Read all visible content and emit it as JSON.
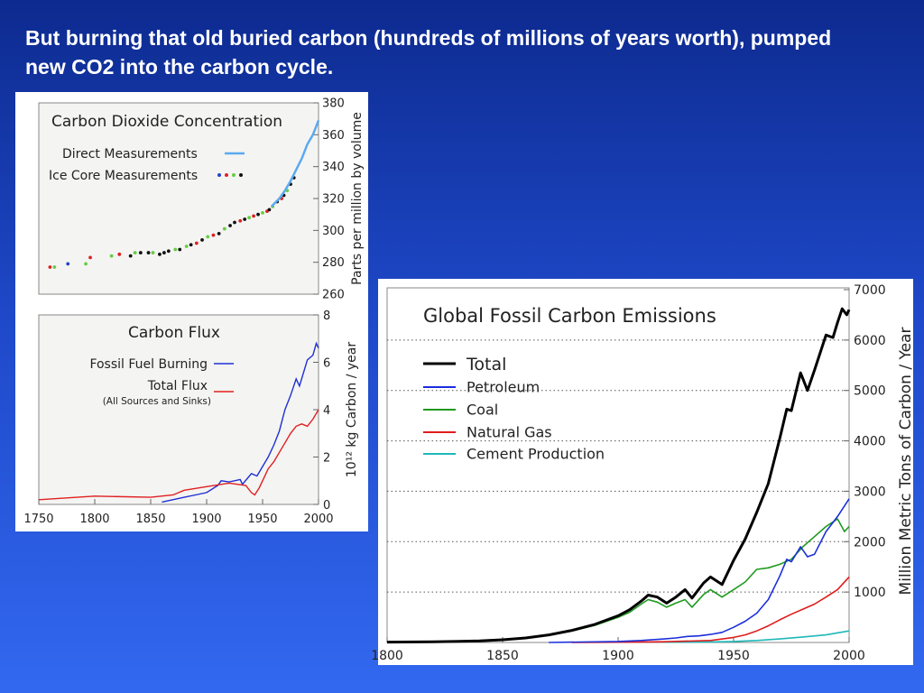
{
  "slide": {
    "title": "But burning that old buried carbon (hundreds of millions of years worth), pumped new CO2 into the carbon cycle."
  },
  "chart_data": [
    {
      "type": "scatter",
      "title": "Carbon Dioxide Concentration",
      "ylabel": "Parts per million by volume",
      "xlim": [
        1750,
        2000
      ],
      "ylim": [
        260,
        380
      ],
      "yticks": [
        "260",
        "280",
        "300",
        "320",
        "340",
        "360",
        "380"
      ],
      "legend": [
        {
          "label": "Direct Measurements",
          "color": "#5aaaf0"
        },
        {
          "label": "Ice Core Measurements",
          "colors": [
            "#2244cc",
            "#dd2222",
            "#66cc44",
            "#111111"
          ]
        }
      ],
      "series": [
        {
          "name": "Direct Measurements",
          "kind": "line",
          "color": "#5aaaf0",
          "x": [
            1958,
            1965,
            1970,
            1975,
            1980,
            1985,
            1990,
            1995,
            2000
          ],
          "y": [
            315,
            320,
            325,
            331,
            338,
            345,
            354,
            360,
            369
          ]
        },
        {
          "name": "Ice Core Measurements",
          "kind": "points",
          "x": [
            1760,
            1764,
            1776,
            1792,
            1796,
            1815,
            1822,
            1832,
            1836,
            1841,
            1848,
            1852,
            1858,
            1862,
            1866,
            1872,
            1876,
            1882,
            1886,
            1891,
            1896,
            1901,
            1906,
            1911,
            1916,
            1921,
            1925,
            1930,
            1934,
            1938,
            1942,
            1946,
            1950,
            1954,
            1956,
            1959,
            1963,
            1967,
            1969,
            1972,
            1975,
            1978
          ],
          "y": [
            277,
            277,
            279,
            279,
            283,
            284,
            285,
            284,
            286,
            286,
            286,
            286,
            285,
            286,
            287,
            288,
            288,
            290,
            291,
            292,
            294,
            296,
            297,
            298,
            301,
            303,
            305,
            306,
            307,
            308,
            309,
            310,
            311,
            312,
            313,
            315,
            318,
            320,
            322,
            325,
            329,
            333
          ],
          "colors": [
            "#dd2222",
            "#66cc44",
            "#2244cc",
            "#66cc44",
            "#dd2222",
            "#66cc44",
            "#dd2222",
            "#111111",
            "#66cc44",
            "#111111",
            "#111111",
            "#66cc44",
            "#111111",
            "#111111",
            "#111111",
            "#66cc44",
            "#111111",
            "#66cc44",
            "#111111",
            "#dd2222",
            "#111111",
            "#66cc44",
            "#dd2222",
            "#111111",
            "#66cc44",
            "#111111",
            "#111111",
            "#dd2222",
            "#111111",
            "#66cc44",
            "#dd2222",
            "#111111",
            "#66cc44",
            "#dd2222",
            "#111111",
            "#66cc44",
            "#111111",
            "#dd2222",
            "#111111",
            "#66cc44",
            "#111111",
            "#111111"
          ]
        }
      ]
    },
    {
      "type": "line",
      "title": "Carbon Flux",
      "ylabel": "10¹² kg Carbon / year",
      "xlim": [
        1750,
        2000
      ],
      "ylim": [
        0,
        8
      ],
      "xticks": [
        "1750",
        "1800",
        "1850",
        "1900",
        "1950",
        "2000"
      ],
      "yticks": [
        "0",
        "2",
        "4",
        "6",
        "8"
      ],
      "legend_note": "(All Sources and Sinks)",
      "series": [
        {
          "name": "Fossil Fuel Burning",
          "color": "#1f2fd4",
          "x": [
            1860,
            1880,
            1890,
            1900,
            1910,
            1913,
            1920,
            1930,
            1932,
            1940,
            1945,
            1950,
            1955,
            1960,
            1965,
            1970,
            1975,
            1980,
            1983,
            1990,
            1995,
            1998,
            2000
          ],
          "y": [
            0.1,
            0.3,
            0.4,
            0.5,
            0.8,
            1.0,
            0.95,
            1.05,
            0.85,
            1.3,
            1.2,
            1.6,
            2.0,
            2.5,
            3.1,
            4.0,
            4.6,
            5.3,
            5.0,
            6.1,
            6.3,
            6.8,
            6.6
          ]
        },
        {
          "name": "Total Flux",
          "color": "#e02020",
          "x": [
            1750,
            1800,
            1850,
            1870,
            1880,
            1900,
            1920,
            1935,
            1940,
            1943,
            1947,
            1950,
            1955,
            1960,
            1965,
            1970,
            1975,
            1980,
            1985,
            1990,
            1995,
            2000
          ],
          "y": [
            0.2,
            0.35,
            0.3,
            0.4,
            0.6,
            0.75,
            0.9,
            0.8,
            0.5,
            0.4,
            0.7,
            1.0,
            1.5,
            1.8,
            2.2,
            2.6,
            3.0,
            3.3,
            3.4,
            3.3,
            3.6,
            4.0
          ]
        }
      ]
    },
    {
      "type": "line",
      "title": "Global Fossil Carbon Emissions",
      "ylabel": "Million Metric Tons of Carbon / Year",
      "xlim": [
        1800,
        2000
      ],
      "ylim": [
        0,
        7000
      ],
      "xticks": [
        "1800",
        "1850",
        "1900",
        "1950",
        "2000"
      ],
      "yticks": [
        "1000",
        "2000",
        "3000",
        "4000",
        "5000",
        "6000",
        "7000"
      ],
      "grid": "dotted horizontal at each y tick",
      "series": [
        {
          "name": "Total",
          "color": "#000000",
          "x": [
            1800,
            1820,
            1840,
            1850,
            1860,
            1870,
            1880,
            1890,
            1900,
            1905,
            1910,
            1913,
            1917,
            1921,
            1925,
            1929,
            1932,
            1937,
            1940,
            1945,
            1950,
            1955,
            1960,
            1965,
            1970,
            1973,
            1975,
            1979,
            1982,
            1985,
            1990,
            1993,
            1995,
            1997,
            1999,
            2000
          ],
          "y": [
            8,
            15,
            30,
            54,
            90,
            150,
            240,
            360,
            530,
            650,
            820,
            940,
            900,
            780,
            900,
            1050,
            880,
            1180,
            1300,
            1150,
            1630,
            2050,
            2580,
            3150,
            4050,
            4630,
            4600,
            5350,
            5000,
            5400,
            6100,
            6050,
            6350,
            6620,
            6500,
            6600
          ]
        },
        {
          "name": "Petroleum",
          "color": "#1c2fdc",
          "x": [
            1870,
            1900,
            1910,
            1920,
            1925,
            1930,
            1935,
            1940,
            1945,
            1950,
            1955,
            1960,
            1965,
            1970,
            1973,
            1975,
            1979,
            1982,
            1985,
            1990,
            1995,
            2000
          ],
          "y": [
            0,
            20,
            40,
            70,
            90,
            120,
            130,
            160,
            200,
            300,
            420,
            580,
            850,
            1320,
            1650,
            1600,
            1900,
            1700,
            1750,
            2200,
            2500,
            2850
          ]
        },
        {
          "name": "Coal",
          "color": "#1f9a1f",
          "x": [
            1800,
            1820,
            1840,
            1850,
            1860,
            1870,
            1880,
            1890,
            1900,
            1905,
            1910,
            1913,
            1917,
            1921,
            1925,
            1929,
            1932,
            1937,
            1940,
            1945,
            1950,
            1955,
            1960,
            1965,
            1970,
            1975,
            1980,
            1985,
            1990,
            1995,
            1998,
            2000
          ],
          "y": [
            8,
            15,
            30,
            54,
            90,
            150,
            230,
            340,
            500,
            600,
            760,
            850,
            800,
            700,
            780,
            850,
            700,
            950,
            1050,
            900,
            1050,
            1200,
            1450,
            1480,
            1550,
            1650,
            1900,
            2100,
            2300,
            2450,
            2200,
            2300
          ]
        },
        {
          "name": "Natural Gas",
          "color": "#e01c1c",
          "x": [
            1880,
            1900,
            1920,
            1940,
            1950,
            1955,
            1960,
            1965,
            1970,
            1975,
            1980,
            1985,
            1990,
            1995,
            2000
          ],
          "y": [
            0,
            5,
            15,
            40,
            100,
            150,
            230,
            330,
            450,
            560,
            660,
            760,
            900,
            1050,
            1300
          ]
        },
        {
          "name": "Cement Production",
          "color": "#1fb8b8",
          "x": [
            1920,
            1940,
            1950,
            1960,
            1970,
            1980,
            1990,
            2000
          ],
          "y": [
            5,
            10,
            20,
            40,
            70,
            110,
            150,
            230
          ]
        }
      ]
    }
  ]
}
